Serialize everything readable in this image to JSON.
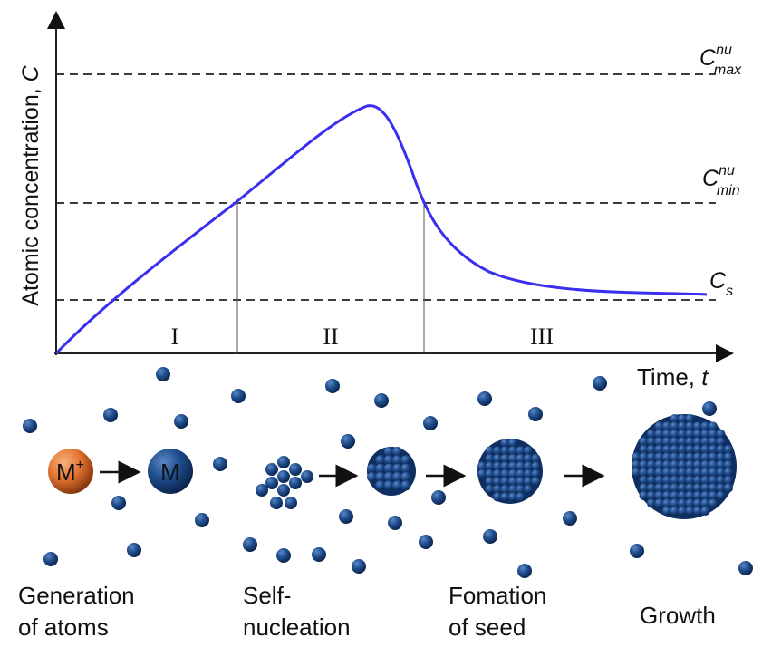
{
  "plot": {
    "y_axis_label": {
      "text": "Atomic concentration,",
      "var": "C"
    },
    "x_axis_label": {
      "text": "Time,",
      "var": "t"
    },
    "levels": [
      {
        "base": "C",
        "sup": "nu",
        "sub": "max"
      },
      {
        "base": "C",
        "sup": "nu",
        "sub": "min"
      },
      {
        "base": "C",
        "sub": "s"
      }
    ],
    "stages": [
      "I",
      "II",
      "III"
    ]
  },
  "steps": {
    "ion": {
      "base": "M",
      "sup": "+"
    },
    "atom": "M",
    "captions": [
      [
        "Generation",
        "of atoms"
      ],
      [
        "Self-",
        "nucleation"
      ],
      [
        "Fomation",
        "of seed"
      ],
      [
        "Growth"
      ]
    ]
  }
}
